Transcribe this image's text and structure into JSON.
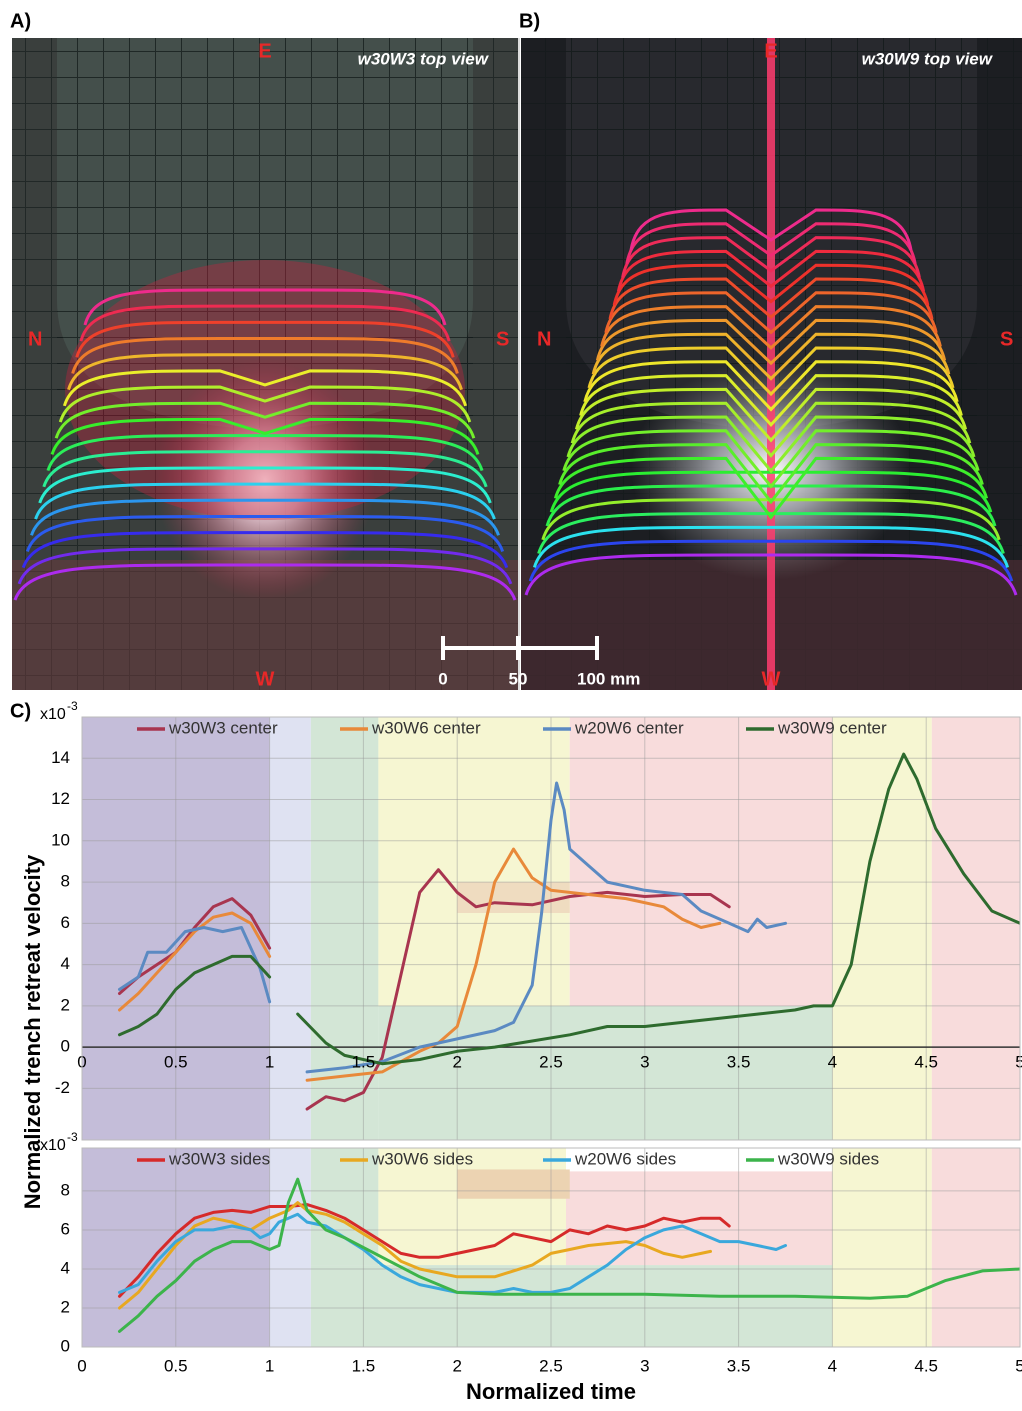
{
  "panels": [
    {
      "label": "A)",
      "title": "w30W3 top view",
      "east": "E",
      "west": "W",
      "north": "N",
      "south": "S"
    },
    {
      "label": "B)",
      "title": "w30W9 top view",
      "east": "E",
      "west": "W",
      "north": "N",
      "south": "S"
    }
  ],
  "scale_bar": {
    "labels": [
      "0",
      "50",
      "100 mm"
    ]
  },
  "panel_c_label": "C)",
  "chart_data": [
    {
      "type": "line",
      "ylabel": "Normalized trench retreat velocity",
      "y_scale_base": "x10",
      "y_scale_exponent": "-3",
      "xlim": [
        0,
        5
      ],
      "ylim": [
        -4.5,
        16
      ],
      "xticks": [
        0,
        0.5,
        1,
        1.5,
        2,
        2.5,
        3,
        3.5,
        4,
        4.5,
        5
      ],
      "yticks": [
        -2,
        0,
        2,
        4,
        6,
        8,
        10,
        12,
        14
      ],
      "grid": true,
      "legend": "top",
      "bands": [
        {
          "x": [
            0,
            1
          ],
          "y": [
            -4.5,
            16
          ],
          "color": "#c4bdd9"
        },
        {
          "x": [
            1,
            1.22
          ],
          "y": [
            -4.5,
            16
          ],
          "color": "#dfe2f2"
        },
        {
          "x": [
            1.22,
            1.58
          ],
          "y": [
            -4.5,
            16
          ],
          "color": "#d3e6d6"
        },
        {
          "x": [
            1.58,
            4
          ],
          "y": [
            -4.5,
            2
          ],
          "color": "#d3e6d6"
        },
        {
          "x": [
            1.58,
            2.6
          ],
          "y": [
            2,
            16
          ],
          "color": "#f6f6d2"
        },
        {
          "x": [
            2.6,
            4
          ],
          "y": [
            2,
            16
          ],
          "color": "#f8dcdc"
        },
        {
          "x": [
            2,
            2.6
          ],
          "y": [
            6.5,
            8
          ],
          "color": "#efdcc0"
        },
        {
          "x": [
            4,
            4.53
          ],
          "y": [
            -4.5,
            16
          ],
          "color": "#f6f6d2"
        },
        {
          "x": [
            4.53,
            5
          ],
          "y": [
            -4.5,
            16
          ],
          "color": "#f8dcdc"
        }
      ],
      "series": [
        {
          "name": "w30W3 center",
          "color": "#a8354f",
          "x": [
            0.2,
            0.3,
            0.4,
            0.5,
            0.6,
            0.7,
            0.8,
            0.9,
            1.0,
            1.1,
            1.2,
            1.3,
            1.4,
            1.5,
            1.6,
            1.7,
            1.8,
            1.9,
            2.0,
            2.1,
            2.2,
            2.4,
            2.6,
            2.8,
            3.0,
            3.2,
            3.35,
            3.45
          ],
          "values": [
            2.6,
            3.4,
            4.0,
            4.6,
            5.8,
            6.8,
            7.2,
            6.4,
            4.8,
            null,
            -3.0,
            -2.4,
            -2.6,
            -2.2,
            -0.5,
            3.5,
            7.5,
            8.6,
            7.5,
            6.8,
            7.0,
            6.9,
            7.3,
            7.5,
            7.3,
            7.4,
            7.4,
            6.8
          ]
        },
        {
          "name": "w30W6 center",
          "color": "#e8893a",
          "x": [
            0.2,
            0.3,
            0.4,
            0.5,
            0.6,
            0.7,
            0.8,
            0.9,
            1.0,
            1.1,
            1.2,
            1.4,
            1.6,
            1.8,
            1.9,
            2.0,
            2.1,
            2.2,
            2.3,
            2.4,
            2.5,
            2.7,
            2.9,
            3.1,
            3.2,
            3.3,
            3.4
          ],
          "values": [
            1.8,
            2.6,
            3.6,
            4.6,
            5.6,
            6.3,
            6.5,
            6.0,
            4.4,
            null,
            -1.6,
            -1.4,
            -1.2,
            -0.2,
            0.2,
            1.0,
            4.0,
            8.0,
            9.6,
            8.2,
            7.6,
            7.4,
            7.2,
            6.8,
            6.2,
            5.8,
            6.0
          ]
        },
        {
          "name": "w20W6 center",
          "color": "#5b8ac2",
          "x": [
            0.2,
            0.3,
            0.35,
            0.45,
            0.55,
            0.65,
            0.75,
            0.85,
            0.95,
            1.0,
            1.1,
            1.2,
            1.4,
            1.6,
            1.8,
            2.0,
            2.2,
            2.3,
            2.4,
            2.45,
            2.5,
            2.53,
            2.57,
            2.6,
            2.7,
            2.8,
            3.0,
            3.2,
            3.3,
            3.45,
            3.55,
            3.6,
            3.65,
            3.75
          ],
          "values": [
            2.8,
            3.4,
            4.6,
            4.6,
            5.6,
            5.8,
            5.6,
            5.8,
            3.8,
            2.2,
            null,
            -1.2,
            -1.0,
            -0.7,
            0,
            0.4,
            0.8,
            1.2,
            3.0,
            6.5,
            11.0,
            12.8,
            11.5,
            9.6,
            8.8,
            8.0,
            7.6,
            7.4,
            6.6,
            6.0,
            5.6,
            6.2,
            5.8,
            6.0
          ]
        },
        {
          "name": "w30W9 center",
          "color": "#2e6b2e",
          "x": [
            0.2,
            0.3,
            0.4,
            0.5,
            0.6,
            0.7,
            0.8,
            0.9,
            1.0,
            1.08,
            1.15,
            1.3,
            1.4,
            1.6,
            1.8,
            2.0,
            2.2,
            2.4,
            2.6,
            2.8,
            3.0,
            3.2,
            3.4,
            3.6,
            3.8,
            3.9,
            4.0,
            4.1,
            4.2,
            4.3,
            4.38,
            4.45,
            4.55,
            4.7,
            4.85,
            5.0
          ],
          "values": [
            0.6,
            1.0,
            1.6,
            2.8,
            3.6,
            4.0,
            4.4,
            4.4,
            3.4,
            null,
            1.6,
            0.2,
            -0.4,
            -0.8,
            -0.6,
            -0.2,
            0.0,
            0.3,
            0.6,
            1.0,
            1.0,
            1.2,
            1.4,
            1.6,
            1.8,
            2.0,
            2.0,
            4.0,
            9.0,
            12.5,
            14.2,
            13.0,
            10.6,
            8.4,
            6.6,
            6.0
          ]
        }
      ]
    },
    {
      "type": "line",
      "xlabel": "Normalized time",
      "y_scale_base": "x10",
      "y_scale_exponent": "-3",
      "xlim": [
        0,
        5
      ],
      "ylim": [
        0,
        10.2
      ],
      "xticks": [
        0,
        0.5,
        1,
        1.5,
        2,
        2.5,
        3,
        3.5,
        4,
        4.5,
        5
      ],
      "yticks": [
        0,
        2,
        4,
        6,
        8
      ],
      "grid": true,
      "legend": "top",
      "bands": [
        {
          "x": [
            0,
            1
          ],
          "y": [
            0,
            10.2
          ],
          "color": "#c4bdd9"
        },
        {
          "x": [
            1,
            1.22
          ],
          "y": [
            0,
            10.2
          ],
          "color": "#dfe2f2"
        },
        {
          "x": [
            1.22,
            4
          ],
          "y": [
            0,
            4.2
          ],
          "color": "#d3e6d6"
        },
        {
          "x": [
            1.22,
            1.58
          ],
          "y": [
            4.2,
            10.2
          ],
          "color": "#d3e6d6"
        },
        {
          "x": [
            1.58,
            2.58
          ],
          "y": [
            4.2,
            10.2
          ],
          "color": "#f6f6d2"
        },
        {
          "x": [
            2.58,
            4
          ],
          "y": [
            4.2,
            9
          ],
          "color": "#f8dcdc"
        },
        {
          "x": [
            2,
            2.6
          ],
          "y": [
            7.6,
            9.1
          ],
          "color": "#ecd3b2"
        },
        {
          "x": [
            4,
            4.53
          ],
          "y": [
            0,
            10.2
          ],
          "color": "#f6f6d2"
        },
        {
          "x": [
            4.53,
            5
          ],
          "y": [
            0,
            10.2
          ],
          "color": "#f8dcdc"
        }
      ],
      "series": [
        {
          "name": "w30W3 sides",
          "color": "#d62a2a",
          "x": [
            0.2,
            0.3,
            0.4,
            0.5,
            0.6,
            0.7,
            0.8,
            0.9,
            1.0,
            1.1,
            1.2,
            1.3,
            1.4,
            1.5,
            1.6,
            1.7,
            1.8,
            1.9,
            2.0,
            2.2,
            2.3,
            2.4,
            2.5,
            2.6,
            2.7,
            2.8,
            2.9,
            3.0,
            3.1,
            3.2,
            3.3,
            3.4,
            3.45
          ],
          "values": [
            2.6,
            3.6,
            4.8,
            5.8,
            6.6,
            6.9,
            7.0,
            6.9,
            7.2,
            7.2,
            7.3,
            7.0,
            6.6,
            6.0,
            5.4,
            4.8,
            4.6,
            4.6,
            4.8,
            5.2,
            5.8,
            5.6,
            5.4,
            6.0,
            5.8,
            6.2,
            6.0,
            6.2,
            6.6,
            6.4,
            6.6,
            6.6,
            6.2
          ]
        },
        {
          "name": "w30W6 sides",
          "color": "#e8a820",
          "x": [
            0.2,
            0.3,
            0.4,
            0.5,
            0.6,
            0.7,
            0.8,
            0.9,
            1.0,
            1.1,
            1.15,
            1.2,
            1.3,
            1.4,
            1.5,
            1.6,
            1.7,
            1.8,
            1.9,
            2.0,
            2.2,
            2.4,
            2.5,
            2.6,
            2.7,
            2.9,
            3.0,
            3.1,
            3.2,
            3.3,
            3.35
          ],
          "values": [
            2.0,
            2.8,
            4.0,
            5.2,
            6.2,
            6.6,
            6.4,
            6.0,
            6.6,
            7.0,
            7.4,
            7.0,
            6.8,
            6.4,
            5.8,
            5.2,
            4.4,
            4.0,
            3.8,
            3.6,
            3.6,
            4.2,
            4.8,
            5.0,
            5.2,
            5.4,
            5.2,
            4.8,
            4.6,
            4.8,
            4.9
          ]
        },
        {
          "name": "w20W6 sides",
          "color": "#3aa8dc",
          "x": [
            0.2,
            0.3,
            0.4,
            0.5,
            0.6,
            0.7,
            0.8,
            0.9,
            0.95,
            1.0,
            1.05,
            1.1,
            1.15,
            1.2,
            1.3,
            1.4,
            1.5,
            1.6,
            1.7,
            1.8,
            1.9,
            2.0,
            2.1,
            2.2,
            2.3,
            2.4,
            2.5,
            2.6,
            2.7,
            2.8,
            2.9,
            3.0,
            3.1,
            3.2,
            3.3,
            3.4,
            3.5,
            3.6,
            3.7,
            3.75
          ],
          "values": [
            2.8,
            3.2,
            4.4,
            5.4,
            6.0,
            6.0,
            6.2,
            6.0,
            5.6,
            5.8,
            6.4,
            6.6,
            6.8,
            6.4,
            6.2,
            5.6,
            5.0,
            4.2,
            3.6,
            3.2,
            3.0,
            2.8,
            2.8,
            2.8,
            3.0,
            2.8,
            2.8,
            3.0,
            3.6,
            4.2,
            5.0,
            5.6,
            6.0,
            6.2,
            5.8,
            5.4,
            5.4,
            5.2,
            5.0,
            5.2
          ]
        },
        {
          "name": "w30W9 sides",
          "color": "#3cb44b",
          "x": [
            0.2,
            0.3,
            0.4,
            0.5,
            0.6,
            0.7,
            0.8,
            0.9,
            1.0,
            1.05,
            1.1,
            1.15,
            1.2,
            1.3,
            1.4,
            1.6,
            1.8,
            2.0,
            2.2,
            2.6,
            3.0,
            3.4,
            3.8,
            4.2,
            4.4,
            4.6,
            4.8,
            5.0
          ],
          "values": [
            0.8,
            1.6,
            2.6,
            3.4,
            4.4,
            5.0,
            5.4,
            5.4,
            5.0,
            5.2,
            7.4,
            8.6,
            7.0,
            6.0,
            5.6,
            4.6,
            3.6,
            2.8,
            2.7,
            2.7,
            2.7,
            2.6,
            2.6,
            2.5,
            2.6,
            3.4,
            3.9,
            4.0
          ]
        }
      ]
    }
  ]
}
